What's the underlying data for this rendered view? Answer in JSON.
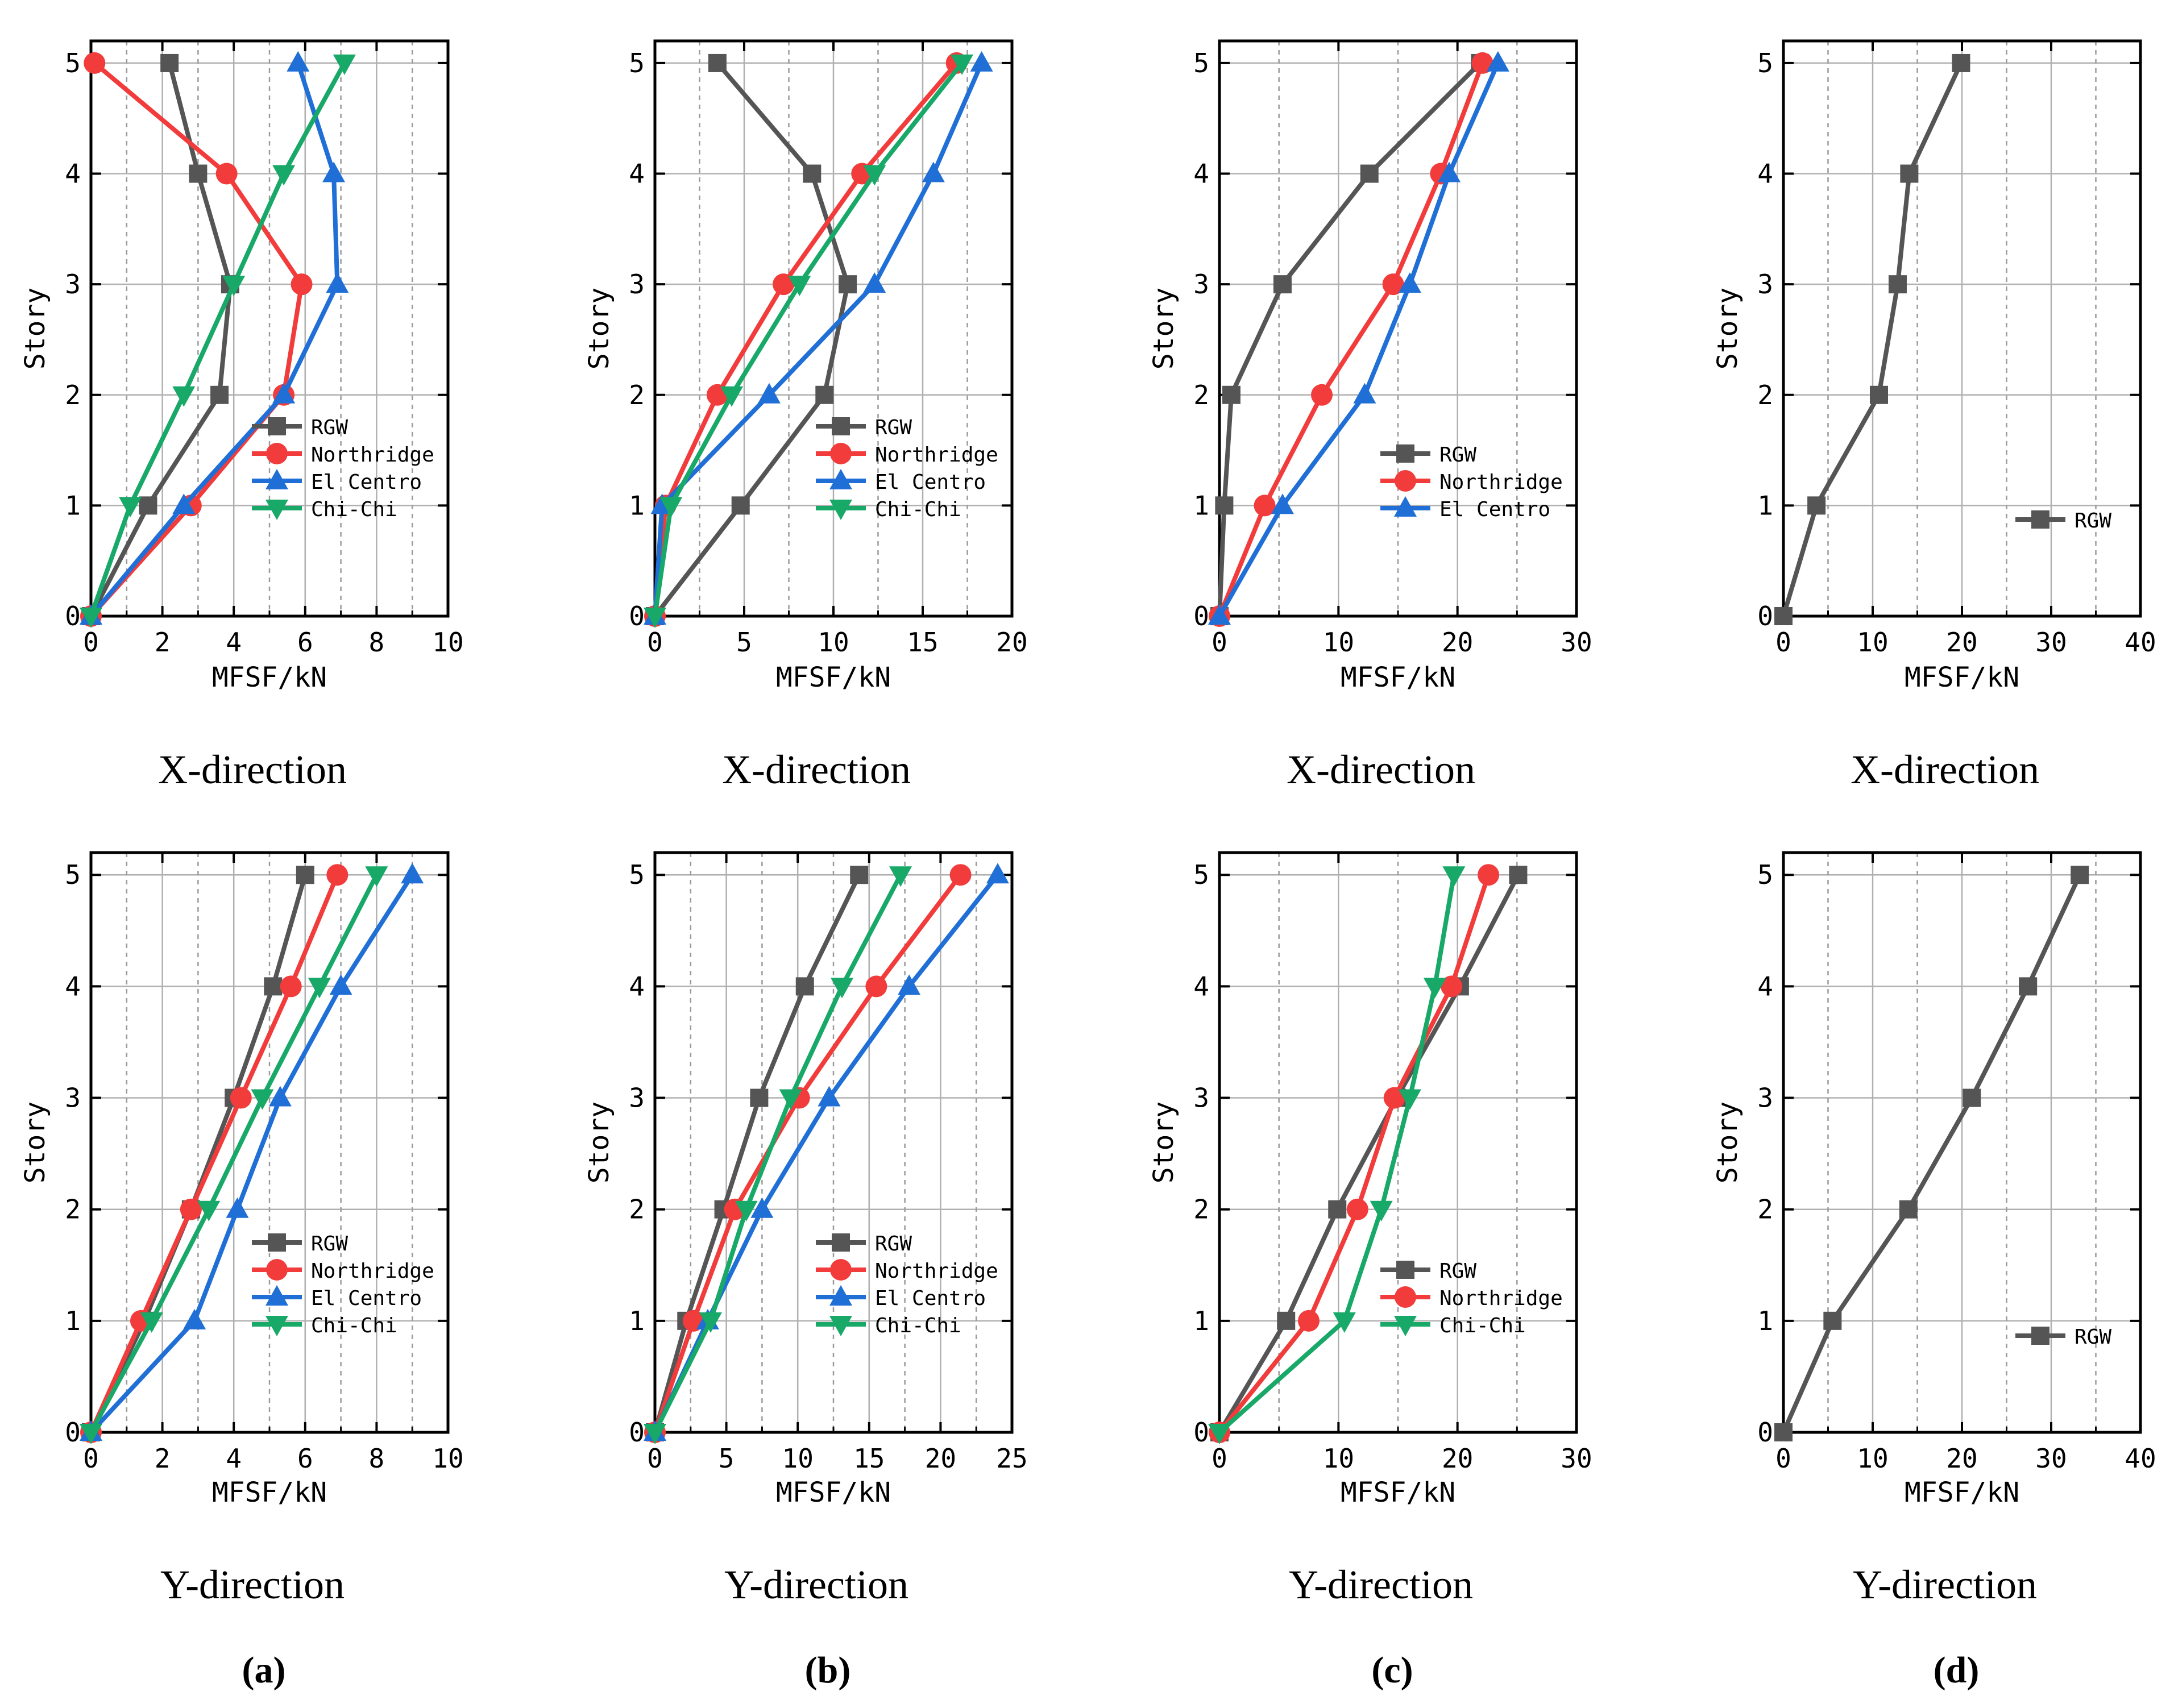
{
  "colors": {
    "RGW": "#555555",
    "Northridge": "#f23c3c",
    "El Centro": "#1f6fd6",
    "Chi-Chi": "#18a868"
  },
  "chart_data": [
    {
      "type": "line",
      "group": "(a)",
      "direction_label": "X-direction",
      "xlabel": "MFSF/kN",
      "ylabel": "Story",
      "xlim": [
        0,
        10
      ],
      "xticks": [
        0,
        2,
        4,
        6,
        8,
        10
      ],
      "ylim": [
        0,
        5.2
      ],
      "yticks": [
        0,
        1,
        2,
        3,
        4,
        5
      ],
      "legend_position": "lower-right",
      "series": [
        {
          "name": "RGW",
          "marker": "square",
          "x": [
            0,
            1.6,
            3.6,
            3.9,
            3.0,
            2.2
          ],
          "y": [
            0,
            1,
            2,
            3,
            4,
            5
          ]
        },
        {
          "name": "Northridge",
          "marker": "circle",
          "x": [
            0,
            2.8,
            5.4,
            5.9,
            3.8,
            0.1
          ],
          "y": [
            0,
            1,
            2,
            3,
            4,
            5
          ]
        },
        {
          "name": "El Centro",
          "marker": "triangle-up",
          "x": [
            0,
            2.6,
            5.4,
            6.9,
            6.8,
            5.8
          ],
          "y": [
            0,
            1,
            2,
            3,
            4,
            5
          ]
        },
        {
          "name": "Chi-Chi",
          "marker": "triangle-down",
          "x": [
            0,
            1.1,
            2.6,
            4.0,
            5.4,
            7.1
          ],
          "y": [
            0,
            1,
            2,
            3,
            4,
            5
          ]
        }
      ]
    },
    {
      "type": "line",
      "group": "(b)",
      "direction_label": "X-direction",
      "xlabel": "MFSF/kN",
      "ylabel": "Story",
      "xlim": [
        0,
        20
      ],
      "xticks": [
        0,
        5,
        10,
        15,
        20
      ],
      "ylim": [
        0,
        5.2
      ],
      "yticks": [
        0,
        1,
        2,
        3,
        4,
        5
      ],
      "legend_position": "lower-right",
      "series": [
        {
          "name": "RGW",
          "marker": "square",
          "x": [
            0,
            4.8,
            9.5,
            10.8,
            8.8,
            3.5
          ],
          "y": [
            0,
            1,
            2,
            3,
            4,
            5
          ]
        },
        {
          "name": "Northridge",
          "marker": "circle",
          "x": [
            0,
            0.6,
            3.5,
            7.2,
            11.6,
            16.9
          ],
          "y": [
            0,
            1,
            2,
            3,
            4,
            5
          ]
        },
        {
          "name": "El Centro",
          "marker": "triangle-up",
          "x": [
            0,
            0.4,
            6.4,
            12.3,
            15.6,
            18.3
          ],
          "y": [
            0,
            1,
            2,
            3,
            4,
            5
          ]
        },
        {
          "name": "Chi-Chi",
          "marker": "triangle-down",
          "x": [
            0,
            0.9,
            4.3,
            8.1,
            12.3,
            17.2
          ],
          "y": [
            0,
            1,
            2,
            3,
            4,
            5
          ]
        }
      ]
    },
    {
      "type": "line",
      "group": "(c)",
      "direction_label": "X-direction",
      "xlabel": "MFSF/kN",
      "ylabel": "Story",
      "xlim": [
        0,
        30
      ],
      "xticks": [
        0,
        10,
        20,
        30
      ],
      "ylim": [
        0,
        5.2
      ],
      "yticks": [
        0,
        1,
        2,
        3,
        4,
        5
      ],
      "legend_position": "lower-right",
      "series": [
        {
          "name": "RGW",
          "marker": "square",
          "x": [
            0,
            0.4,
            1.0,
            5.3,
            12.6,
            21.9
          ],
          "y": [
            0,
            1,
            2,
            3,
            4,
            5
          ]
        },
        {
          "name": "Northridge",
          "marker": "circle",
          "x": [
            0,
            3.8,
            8.6,
            14.6,
            18.6,
            22.1
          ],
          "y": [
            0,
            1,
            2,
            3,
            4,
            5
          ]
        },
        {
          "name": "El Centro",
          "marker": "triangle-up",
          "x": [
            0,
            5.3,
            12.2,
            16.0,
            19.3,
            23.4
          ],
          "y": [
            0,
            1,
            2,
            3,
            4,
            5
          ]
        }
      ]
    },
    {
      "type": "line",
      "group": "(d)",
      "direction_label": "X-direction",
      "xlabel": "MFSF/kN",
      "ylabel": "Story",
      "xlim": [
        0,
        40
      ],
      "xticks": [
        0,
        10,
        20,
        30,
        40
      ],
      "ylim": [
        0,
        5.2
      ],
      "yticks": [
        0,
        1,
        2,
        3,
        4,
        5
      ],
      "legend_position": "lower-right",
      "series": [
        {
          "name": "RGW",
          "marker": "square",
          "x": [
            0,
            3.7,
            10.7,
            12.8,
            14.1,
            19.9
          ],
          "y": [
            0,
            1,
            2,
            3,
            4,
            5
          ]
        }
      ]
    },
    {
      "type": "line",
      "group": "(a)",
      "direction_label": "Y-direction",
      "xlabel": "MFSF/kN",
      "ylabel": "Story",
      "xlim": [
        0,
        10
      ],
      "xticks": [
        0,
        2,
        4,
        6,
        8,
        10
      ],
      "ylim": [
        0,
        5.2
      ],
      "yticks": [
        0,
        1,
        2,
        3,
        4,
        5
      ],
      "legend_position": "lower-right",
      "series": [
        {
          "name": "RGW",
          "marker": "square",
          "x": [
            0,
            1.5,
            2.8,
            4.0,
            5.1,
            6.0
          ],
          "y": [
            0,
            1,
            2,
            3,
            4,
            5
          ]
        },
        {
          "name": "Northridge",
          "marker": "circle",
          "x": [
            0,
            1.4,
            2.8,
            4.2,
            5.6,
            6.9
          ],
          "y": [
            0,
            1,
            2,
            3,
            4,
            5
          ]
        },
        {
          "name": "El Centro",
          "marker": "triangle-up",
          "x": [
            0,
            2.9,
            4.1,
            5.3,
            7.0,
            9.0
          ],
          "y": [
            0,
            1,
            2,
            3,
            4,
            5
          ]
        },
        {
          "name": "Chi-Chi",
          "marker": "triangle-down",
          "x": [
            0,
            1.7,
            3.3,
            4.8,
            6.4,
            8.0
          ],
          "y": [
            0,
            1,
            2,
            3,
            4,
            5
          ]
        }
      ]
    },
    {
      "type": "line",
      "group": "(b)",
      "direction_label": "Y-direction",
      "xlabel": "MFSF/kN",
      "ylabel": "Story",
      "xlim": [
        0,
        25
      ],
      "xticks": [
        0,
        5,
        10,
        15,
        20,
        25
      ],
      "ylim": [
        0,
        5.2
      ],
      "yticks": [
        0,
        1,
        2,
        3,
        4,
        5
      ],
      "legend_position": "lower-right",
      "series": [
        {
          "name": "RGW",
          "marker": "square",
          "x": [
            0,
            2.2,
            4.8,
            7.3,
            10.5,
            14.3
          ],
          "y": [
            0,
            1,
            2,
            3,
            4,
            5
          ]
        },
        {
          "name": "Northridge",
          "marker": "circle",
          "x": [
            0,
            2.7,
            5.6,
            10.1,
            15.5,
            21.4
          ],
          "y": [
            0,
            1,
            2,
            3,
            4,
            5
          ]
        },
        {
          "name": "El Centro",
          "marker": "triangle-up",
          "x": [
            0,
            3.7,
            7.5,
            12.2,
            17.8,
            24.0
          ],
          "y": [
            0,
            1,
            2,
            3,
            4,
            5
          ]
        },
        {
          "name": "Chi-Chi",
          "marker": "triangle-down",
          "x": [
            0,
            3.9,
            6.4,
            9.5,
            13.1,
            17.2
          ],
          "y": [
            0,
            1,
            2,
            3,
            4,
            5
          ]
        }
      ]
    },
    {
      "type": "line",
      "group": "(c)",
      "direction_label": "Y-direction",
      "xlabel": "MFSF/kN",
      "ylabel": "Story",
      "xlim": [
        0,
        30
      ],
      "xticks": [
        0,
        10,
        20,
        30
      ],
      "ylim": [
        0,
        5.2
      ],
      "yticks": [
        0,
        1,
        2,
        3,
        4,
        5
      ],
      "legend_position": "lower-right",
      "series": [
        {
          "name": "RGW",
          "marker": "square",
          "x": [
            0,
            5.6,
            9.9,
            14.9,
            20.2,
            25.1
          ],
          "y": [
            0,
            1,
            2,
            3,
            4,
            5
          ]
        },
        {
          "name": "Northridge",
          "marker": "circle",
          "x": [
            0,
            7.5,
            11.6,
            14.7,
            19.5,
            22.6
          ],
          "y": [
            0,
            1,
            2,
            3,
            4,
            5
          ]
        },
        {
          "name": "Chi-Chi",
          "marker": "triangle-down",
          "x": [
            0,
            10.5,
            13.6,
            16.0,
            18.1,
            19.7
          ],
          "y": [
            0,
            1,
            2,
            3,
            4,
            5
          ]
        }
      ]
    },
    {
      "type": "line",
      "group": "(d)",
      "direction_label": "Y-direction",
      "xlabel": "MFSF/kN",
      "ylabel": "Story",
      "xlim": [
        0,
        40
      ],
      "xticks": [
        0,
        10,
        20,
        30,
        40
      ],
      "ylim": [
        0,
        5.2
      ],
      "yticks": [
        0,
        1,
        2,
        3,
        4,
        5
      ],
      "legend_position": "lower-right",
      "series": [
        {
          "name": "RGW",
          "marker": "square",
          "x": [
            0,
            5.5,
            14.0,
            21.1,
            27.4,
            33.2
          ],
          "y": [
            0,
            1,
            2,
            3,
            4,
            5
          ]
        }
      ]
    }
  ],
  "group_labels": [
    "(a)",
    "(b)",
    "(c)",
    "(d)"
  ]
}
